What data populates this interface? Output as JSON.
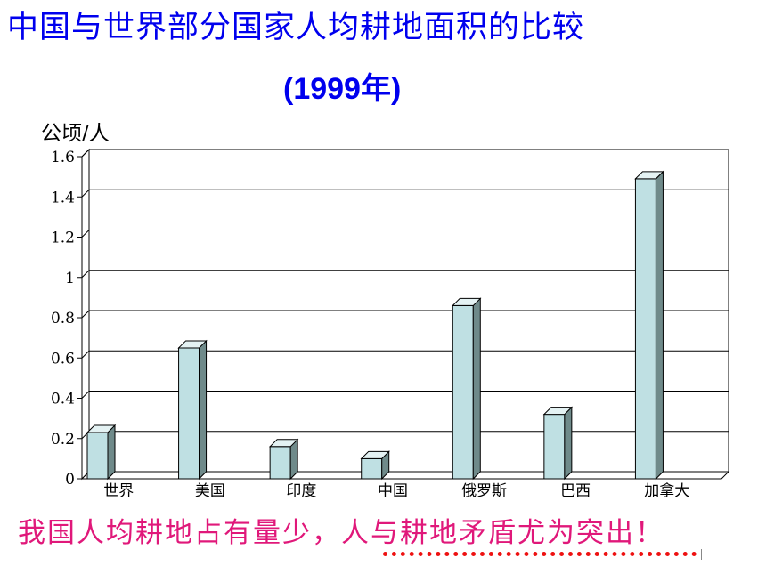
{
  "title": "中国与世界部分国家人均耕地面积的比较",
  "subtitle": "(1999年)",
  "conclusion": "我国人均耕地占有量少，人与耕地矛盾尤为突出！",
  "colors": {
    "title": "#0000ee",
    "conclusion": "#e0187a",
    "bar_front": "#bfe0e3",
    "bar_side": "#6f8a8a",
    "bar_top": "#e4f2f3",
    "underline": "#ee1111"
  },
  "chart_data": {
    "type": "bar",
    "style": "3d-column",
    "ylabel": "公顷/人",
    "categories": [
      "世界",
      "美国",
      "印度",
      "中国",
      "俄罗斯",
      "巴西",
      "加拿大"
    ],
    "values": [
      0.23,
      0.65,
      0.16,
      0.1,
      0.86,
      0.32,
      1.49
    ],
    "ylim": [
      0,
      1.6
    ],
    "yticks": [
      "0",
      "0.2",
      "0.4",
      "0.6",
      "0.8",
      "1",
      "1.2",
      "1.4",
      "1.6"
    ],
    "grid": true,
    "legend": "none"
  }
}
